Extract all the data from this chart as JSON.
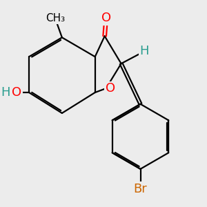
{
  "bg_color": "#ececec",
  "bond_color": "#000000",
  "bond_width": 1.6,
  "atom_colors": {
    "O": "#ff0000",
    "H": "#2a9d8f",
    "Br": "#cc6600",
    "C": "#000000"
  },
  "font_size": 13
}
